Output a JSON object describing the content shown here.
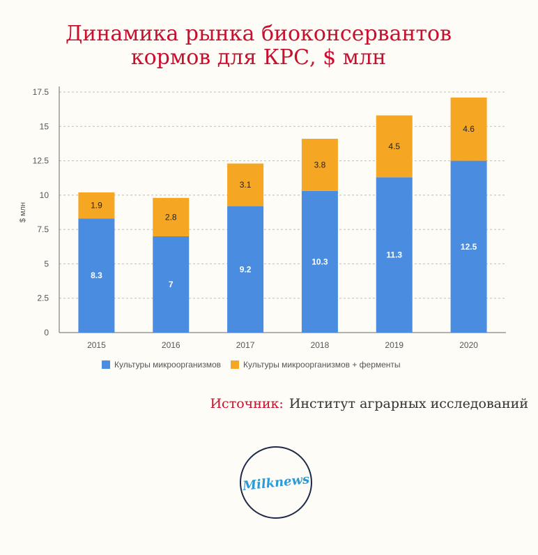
{
  "title": {
    "line1": "Динамика рынка биоконсервантов",
    "line2": "кормов для КРС, $ млн"
  },
  "source": {
    "label": "Источник:",
    "text": "Институт аграрных исследований"
  },
  "logo": {
    "text": "Milknews"
  },
  "colors": {
    "series1": "#4a8de0",
    "series2": "#f5a623",
    "title": "#c8102e",
    "grid": "#bdbdbd"
  },
  "chart_data": {
    "type": "bar",
    "stacked": true,
    "categories": [
      "2015",
      "2016",
      "2017",
      "2018",
      "2019",
      "2020"
    ],
    "series": [
      {
        "name": "Культуры микроорганизмов",
        "values": [
          8.3,
          7,
          9.2,
          10.3,
          11.3,
          12.5
        ],
        "labels": [
          "8.3",
          "7",
          "9.2",
          "10.3",
          "11.3",
          "12.5"
        ]
      },
      {
        "name": "Культуры микроорганизмов + ферменты",
        "values": [
          1.9,
          2.8,
          3.1,
          3.8,
          4.5,
          4.6
        ],
        "labels": [
          "1.9",
          "2.8",
          "3.1",
          "3.8",
          "4.5",
          "4.6"
        ]
      }
    ],
    "ylabel": "$ млн",
    "ylim": [
      0,
      17.5
    ],
    "yticks": [
      "0",
      "2.5",
      "5",
      "7.5",
      "10",
      "12.5",
      "15",
      "17.5"
    ],
    "grid": true,
    "legend": "bottom"
  }
}
